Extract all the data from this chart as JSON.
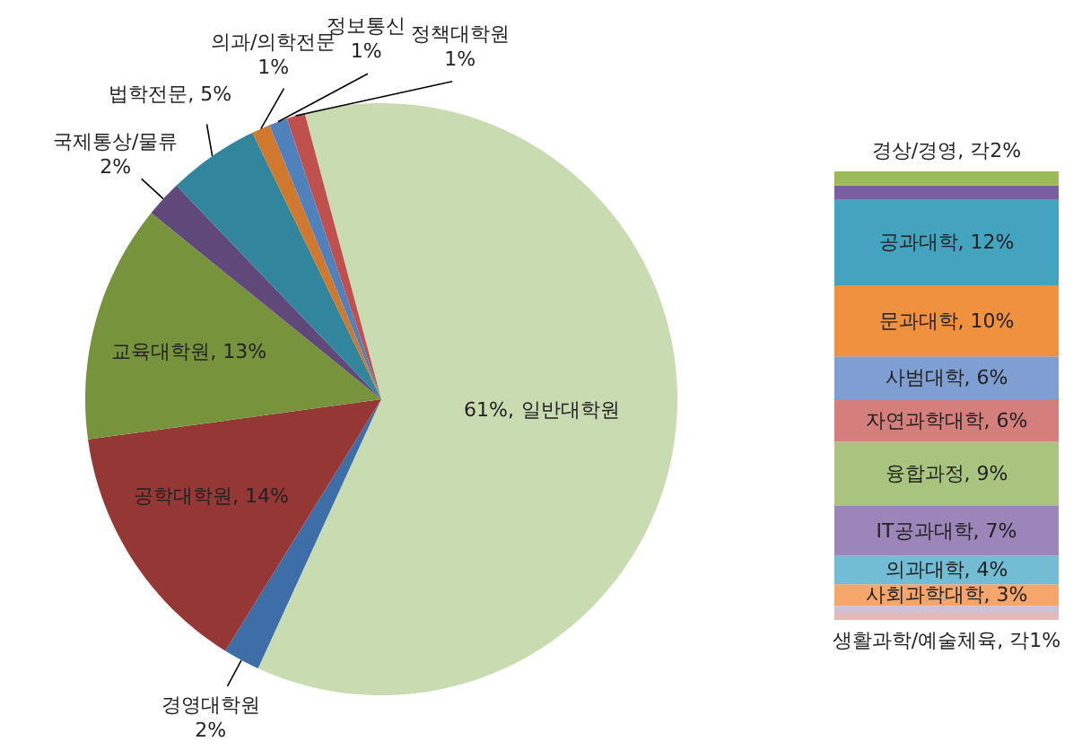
{
  "chart_data": [
    {
      "type": "pie",
      "categories": [
        "일반대학원",
        "경영대학원",
        "공학대학원",
        "교육대학원",
        "국제통상/물류",
        "법학전문",
        "의과/의학전문",
        "정보통신",
        "정책대학원"
      ],
      "values": [
        61,
        2,
        14,
        13,
        2,
        5,
        1,
        1,
        1
      ],
      "colors": [
        "#c9dbb0",
        "#3e6ea8",
        "#953735",
        "#77933c",
        "#60497a",
        "#31859c",
        "#d0792e",
        "#4f81bd",
        "#c0504d"
      ],
      "value_labels": [
        "61%,",
        "2%",
        ", 14%",
        ", 13%",
        "2%",
        ", 5%",
        "1%",
        "1%",
        "1%"
      ]
    },
    {
      "type": "bar",
      "stacked": true,
      "categories": [
        null
      ],
      "series": [
        {
          "color": "#e6b9b8",
          "values": [
            1
          ],
          "value_labels": [
            "생활과학/예술체육, 각1%"
          ]
        },
        {
          "color": "#ccc0da",
          "values": [
            1
          ],
          "value_labels": [
            null
          ]
        },
        {
          "color": "#f7a66b",
          "values": [
            3
          ],
          "value_labels": [
            "사회과학대학, 3%"
          ]
        },
        {
          "color": "#72bcd4",
          "values": [
            4
          ],
          "value_labels": [
            "의과대학, 4%"
          ]
        },
        {
          "color": "#9c85b8",
          "values": [
            7
          ],
          "value_labels": [
            "IT공과대학, 7%"
          ]
        },
        {
          "color": "#a9c47f",
          "values": [
            9
          ],
          "value_labels": [
            "융합과정, 9%"
          ]
        },
        {
          "color": "#d47f7c",
          "values": [
            6
          ],
          "value_labels": [
            "자연과학대학, 6%"
          ]
        },
        {
          "color": "#7f9ed2",
          "values": [
            6
          ],
          "value_labels": [
            "사범대학, 6%"
          ]
        },
        {
          "color": "#f0913f",
          "values": [
            10
          ],
          "value_labels": [
            "문과대학, 10%"
          ]
        },
        {
          "color": "#44a4c0",
          "values": [
            12
          ],
          "value_labels": [
            "공과대학, 12%"
          ]
        },
        {
          "color": "#7a5fa0",
          "values": [
            2
          ],
          "value_labels": [
            null
          ]
        },
        {
          "color": "#9bbb59",
          "values": [
            2
          ],
          "value_labels": [
            "경상/경영, 각2%"
          ]
        }
      ]
    }
  ]
}
